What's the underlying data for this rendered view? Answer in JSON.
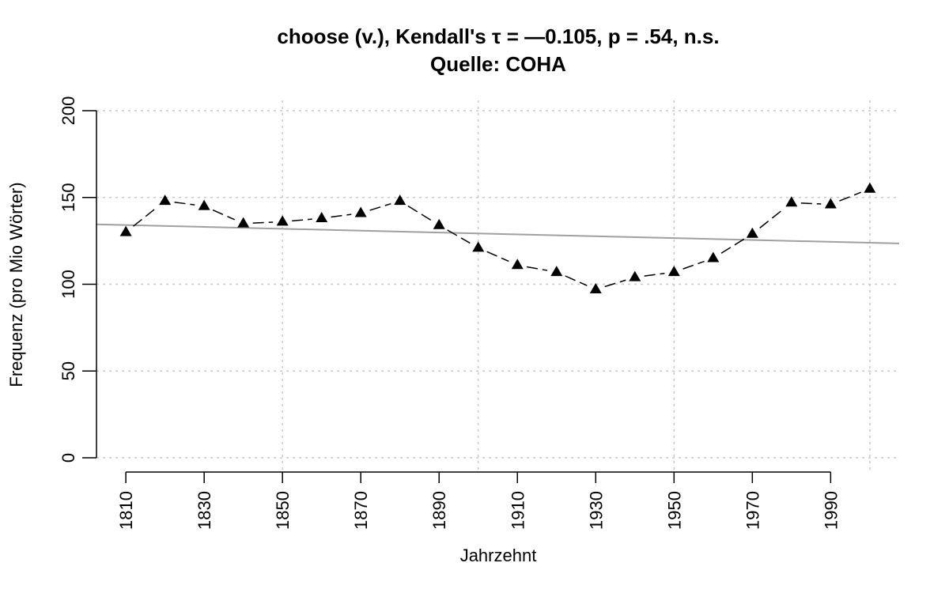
{
  "chart_data": {
    "type": "line",
    "title": "choose (v.), Kendall's τ = —0.105, p = .54, n.s.",
    "subtitle": "Quelle: COHA",
    "xlabel": "Jahrzehnt",
    "ylabel": "Frequenz (pro Mio Wörter)",
    "xlim": [
      1802.5,
      2007.5
    ],
    "ylim": [
      0,
      200
    ],
    "x_ticks": [
      1810,
      1830,
      1850,
      1870,
      1890,
      1910,
      1930,
      1950,
      1970,
      1990
    ],
    "x_tick_labels": [
      "1810",
      "1830",
      "1850",
      "1870",
      "1890",
      "1910",
      "1930",
      "1950",
      "1970",
      "1990"
    ],
    "y_ticks": [
      0,
      50,
      100,
      150,
      200
    ],
    "y_tick_labels": [
      "0",
      "50",
      "100",
      "150",
      "200"
    ],
    "grid": true,
    "colors": {
      "series": "#000000",
      "trend": "#a0a0a0",
      "grid": "#c8c8c8"
    },
    "series": [
      {
        "x": [
          1810,
          1820,
          1830,
          1840,
          1850,
          1860,
          1870,
          1880,
          1890,
          1900,
          1910,
          1920,
          1930,
          1940,
          1950,
          1960,
          1970,
          1980,
          1990,
          2000
        ],
        "values": [
          130,
          148,
          145,
          135,
          136,
          138,
          141,
          148,
          134,
          121,
          111,
          107,
          97,
          104,
          107,
          115,
          129,
          147,
          146,
          155
        ],
        "marker": "filled-triangle",
        "line_style": "dashed"
      }
    ],
    "trend_line": {
      "x": [
        1802.5,
        2007.5
      ],
      "y": [
        134.5,
        123.5
      ],
      "color": "#a0a0a0"
    }
  }
}
